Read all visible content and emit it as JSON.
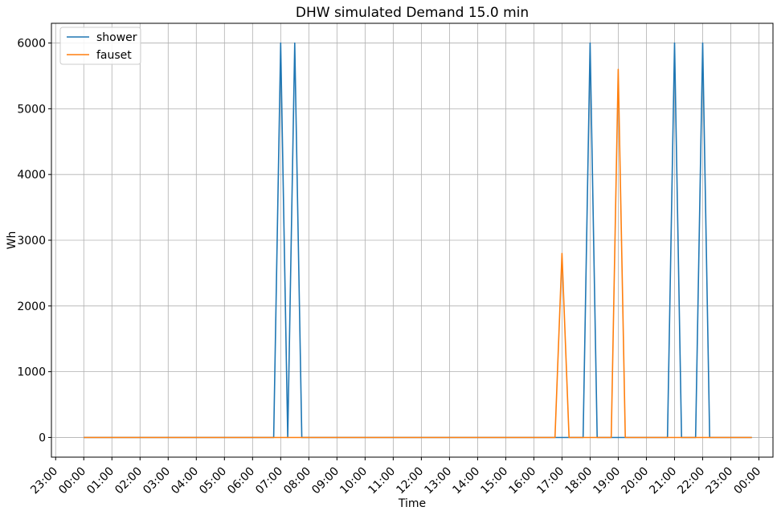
{
  "chart_data": {
    "type": "line",
    "title": "DHW simulated Demand 15.0 min",
    "xlabel": "Time",
    "ylabel": "Wh",
    "x_unit": "hours",
    "xlim": [
      -1.15,
      24.5
    ],
    "ylim": [
      -300,
      6300
    ],
    "grid": true,
    "legend_position": "top-left",
    "x_ticks": [
      {
        "x": -1,
        "label": "23:00"
      },
      {
        "x": 0,
        "label": "00:00"
      },
      {
        "x": 1,
        "label": "01:00"
      },
      {
        "x": 2,
        "label": "02:00"
      },
      {
        "x": 3,
        "label": "03:00"
      },
      {
        "x": 4,
        "label": "04:00"
      },
      {
        "x": 5,
        "label": "05:00"
      },
      {
        "x": 6,
        "label": "06:00"
      },
      {
        "x": 7,
        "label": "07:00"
      },
      {
        "x": 8,
        "label": "08:00"
      },
      {
        "x": 9,
        "label": "09:00"
      },
      {
        "x": 10,
        "label": "10:00"
      },
      {
        "x": 11,
        "label": "11:00"
      },
      {
        "x": 12,
        "label": "12:00"
      },
      {
        "x": 13,
        "label": "13:00"
      },
      {
        "x": 14,
        "label": "14:00"
      },
      {
        "x": 15,
        "label": "15:00"
      },
      {
        "x": 16,
        "label": "16:00"
      },
      {
        "x": 17,
        "label": "17:00"
      },
      {
        "x": 18,
        "label": "18:00"
      },
      {
        "x": 19,
        "label": "19:00"
      },
      {
        "x": 20,
        "label": "20:00"
      },
      {
        "x": 21,
        "label": "21:00"
      },
      {
        "x": 22,
        "label": "22:00"
      },
      {
        "x": 23,
        "label": "23:00"
      },
      {
        "x": 24,
        "label": "00:00"
      }
    ],
    "y_ticks": [
      0,
      1000,
      2000,
      3000,
      4000,
      5000,
      6000
    ],
    "series": [
      {
        "name": "shower",
        "color": "#1f77b4",
        "points": [
          [
            0,
            0
          ],
          [
            6.75,
            0
          ],
          [
            7.0,
            6000
          ],
          [
            7.25,
            0
          ],
          [
            7.5,
            6000
          ],
          [
            7.75,
            0
          ],
          [
            17.75,
            0
          ],
          [
            18.0,
            6000
          ],
          [
            18.25,
            0
          ],
          [
            20.75,
            0
          ],
          [
            21.0,
            6000
          ],
          [
            21.25,
            0
          ],
          [
            21.75,
            0
          ],
          [
            22.0,
            6000
          ],
          [
            22.25,
            0
          ],
          [
            23.75,
            0
          ]
        ]
      },
      {
        "name": "fauset",
        "color": "#ff7f0e",
        "points": [
          [
            0,
            0
          ],
          [
            16.75,
            0
          ],
          [
            17.0,
            2800
          ],
          [
            17.25,
            0
          ],
          [
            18.75,
            0
          ],
          [
            19.0,
            5600
          ],
          [
            19.25,
            0
          ],
          [
            23.75,
            0
          ]
        ]
      }
    ]
  }
}
